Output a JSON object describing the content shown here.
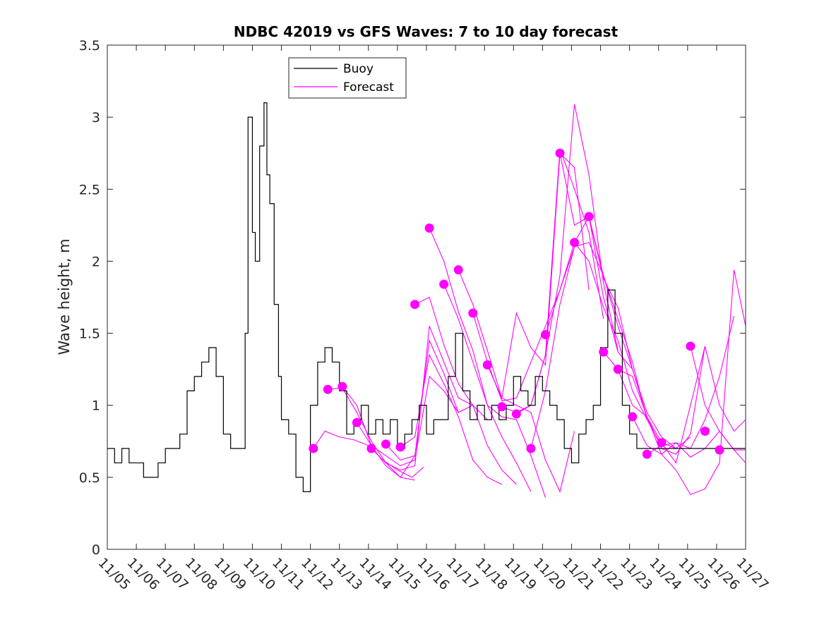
{
  "chart_data": {
    "type": "line",
    "title": "NDBC 42019 vs GFS Waves: 7 to 10 day forecast",
    "xlabel": "",
    "ylabel": "Wave height, m",
    "xlim": [
      0,
      22
    ],
    "ylim": [
      0,
      3.5
    ],
    "yticks": [
      0,
      0.5,
      1,
      1.5,
      2,
      2.5,
      3,
      3.5
    ],
    "ytick_labels": [
      "0",
      "0.5",
      "1",
      "1.5",
      "2",
      "2.5",
      "3",
      "3.5"
    ],
    "xticks": [
      0,
      1,
      2,
      3,
      4,
      5,
      6,
      7,
      8,
      9,
      10,
      11,
      12,
      13,
      14,
      15,
      16,
      17,
      18,
      19,
      20,
      21,
      22
    ],
    "xtick_labels": [
      "11/05",
      "11/06",
      "11/07",
      "11/08",
      "11/09",
      "11/10",
      "11/11",
      "11/12",
      "11/13",
      "11/14",
      "11/15",
      "11/16",
      "11/17",
      "11/18",
      "11/19",
      "11/20",
      "11/21",
      "11/22",
      "11/23",
      "11/24",
      "11/25",
      "11/26",
      "11/27"
    ],
    "legend": {
      "position": "top-left",
      "entries": [
        "Buoy",
        "Forecast"
      ]
    },
    "colors": {
      "buoy": "#000000",
      "forecast": "#ff00ff"
    },
    "buoy": {
      "name": "Buoy",
      "x": [
        0,
        0.25,
        0.5,
        0.75,
        1.0,
        1.25,
        1.5,
        1.75,
        2.0,
        2.25,
        2.5,
        2.75,
        3.0,
        3.25,
        3.5,
        3.75,
        4.0,
        4.25,
        4.5,
        4.75,
        4.85,
        5.0,
        5.1,
        5.25,
        5.4,
        5.5,
        5.6,
        5.75,
        5.9,
        6.0,
        6.25,
        6.5,
        6.75,
        7.0,
        7.25,
        7.5,
        7.75,
        8.0,
        8.25,
        8.5,
        8.75,
        9.0,
        9.25,
        9.5,
        9.75,
        10.0,
        10.25,
        10.5,
        10.75,
        11.0,
        11.25,
        11.5,
        11.75,
        12.0,
        12.25,
        12.5,
        12.75,
        13.0,
        13.25,
        13.5,
        13.75,
        14.0,
        14.25,
        14.5,
        14.75,
        15.0,
        15.25,
        15.5,
        15.75,
        16.0,
        16.25,
        16.5,
        16.75,
        17.0,
        17.25,
        17.5,
        17.75,
        18.0,
        18.25,
        18.5,
        18.75,
        19.0,
        19.25,
        19.5,
        19.75,
        20.0,
        20.25,
        20.5,
        20.75,
        21.0,
        21.25,
        21.5,
        21.75,
        22.0
      ],
      "values": [
        0.7,
        0.6,
        0.7,
        0.6,
        0.6,
        0.5,
        0.5,
        0.6,
        0.7,
        0.7,
        0.8,
        1.1,
        1.2,
        1.3,
        1.4,
        1.2,
        0.8,
        0.7,
        0.7,
        1.5,
        3.0,
        2.2,
        2.0,
        2.8,
        3.1,
        2.6,
        2.4,
        1.7,
        1.2,
        0.9,
        0.8,
        0.5,
        0.4,
        1.0,
        1.3,
        1.4,
        1.3,
        1.1,
        0.8,
        0.9,
        1.0,
        0.8,
        0.9,
        0.8,
        0.9,
        0.7,
        0.8,
        0.9,
        1.0,
        0.8,
        0.9,
        0.9,
        1.2,
        1.5,
        1.1,
        0.9,
        1.0,
        0.9,
        1.0,
        0.9,
        1.0,
        1.2,
        1.1,
        1.0,
        1.2,
        1.1,
        1.0,
        0.9,
        0.7,
        0.6,
        0.8,
        0.9,
        1.0,
        1.4,
        1.8,
        1.5,
        1.0,
        0.8,
        0.7,
        0.7,
        0.7,
        0.7,
        0.7,
        0.7,
        0.7,
        0.7,
        0.7,
        0.7,
        0.7,
        0.7,
        0.7,
        0.7,
        0.7,
        0.7
      ]
    },
    "forecast_series": [
      {
        "name": "Forecast",
        "x": [
          7.1,
          7.5,
          8.0,
          8.5,
          9.0,
          9.5,
          10.0,
          10.5,
          10.9
        ],
        "values": [
          0.7,
          0.82,
          0.78,
          0.76,
          0.72,
          0.62,
          0.55,
          0.5,
          0.57
        ]
      },
      {
        "name": "Forecast",
        "x": [
          7.6,
          8.1,
          8.6,
          9.1,
          9.6,
          10.1,
          10.6
        ],
        "values": [
          1.11,
          1.12,
          0.95,
          0.75,
          0.6,
          0.5,
          0.65
        ]
      },
      {
        "name": "Forecast",
        "x": [
          8.1,
          8.6,
          9.1,
          9.6,
          10.1,
          10.6
        ],
        "values": [
          1.13,
          1.0,
          0.72,
          0.58,
          0.5,
          0.48
        ]
      },
      {
        "name": "Forecast",
        "x": [
          8.6,
          9.1,
          9.6,
          10.1,
          10.6,
          11.1,
          11.6,
          12.1
        ],
        "values": [
          0.88,
          0.72,
          0.65,
          0.58,
          0.62,
          1.2,
          1.1,
          0.95
        ]
      },
      {
        "name": "Forecast",
        "x": [
          9.1,
          9.6,
          10.1,
          10.6,
          11.1,
          11.6,
          12.1,
          12.6
        ],
        "values": [
          0.7,
          0.6,
          0.55,
          0.58,
          1.55,
          1.3,
          1.05,
          1.0
        ]
      },
      {
        "name": "Forecast",
        "x": [
          9.6,
          10.1,
          10.6,
          11.1,
          11.6,
          12.1,
          12.6,
          13.1
        ],
        "values": [
          0.73,
          0.62,
          0.65,
          1.45,
          1.22,
          0.95,
          1.0,
          0.9
        ]
      },
      {
        "name": "Forecast",
        "x": [
          10.1,
          10.6,
          11.1,
          11.6,
          12.1,
          12.6,
          13.1,
          13.6
        ],
        "values": [
          0.71,
          0.78,
          1.35,
          1.15,
          0.92,
          0.62,
          0.5,
          0.45
        ]
      },
      {
        "name": "Forecast",
        "x": [
          10.6,
          11.1,
          11.6,
          12.1,
          12.6,
          13.1,
          13.6,
          14.1
        ],
        "values": [
          1.7,
          1.75,
          1.42,
          1.15,
          1.0,
          0.72,
          0.55,
          0.45
        ]
      },
      {
        "name": "Forecast",
        "x": [
          11.1,
          11.6,
          12.1,
          12.6,
          13.1,
          13.6,
          14.1,
          14.6
        ],
        "values": [
          2.23,
          2.0,
          1.65,
          1.38,
          1.0,
          0.78,
          0.6,
          0.4
        ]
      },
      {
        "name": "Forecast",
        "x": [
          11.6,
          12.1,
          12.6,
          13.1,
          13.6,
          14.1,
          14.6,
          15.1
        ],
        "values": [
          1.84,
          1.6,
          1.3,
          1.0,
          0.92,
          0.9,
          0.65,
          0.36
        ]
      },
      {
        "name": "Forecast",
        "x": [
          12.1,
          12.6,
          13.1,
          13.6,
          14.1,
          14.6,
          15.1,
          15.6,
          16.1
        ],
        "values": [
          1.94,
          1.7,
          1.38,
          1.05,
          1.0,
          0.95,
          0.62,
          0.4,
          0.82
        ]
      },
      {
        "name": "Forecast",
        "x": [
          12.6,
          13.1,
          13.6,
          14.1,
          14.6,
          15.1,
          15.6,
          16.1
        ],
        "values": [
          1.64,
          1.3,
          1.03,
          1.05,
          1.3,
          1.55,
          1.8,
          2.1
        ]
      },
      {
        "name": "Forecast",
        "x": [
          13.1,
          13.6,
          14.1,
          14.6,
          15.1,
          15.6,
          16.1,
          16.6
        ],
        "values": [
          1.28,
          1.05,
          1.64,
          1.4,
          1.28,
          2.75,
          2.65,
          1.8
        ]
      },
      {
        "name": "Forecast",
        "x": [
          13.6,
          14.1,
          14.6,
          15.1,
          15.6,
          16.1,
          16.6,
          17.1
        ],
        "values": [
          0.99,
          0.95,
          1.0,
          1.35,
          2.78,
          2.5,
          2.2,
          1.6
        ]
      },
      {
        "name": "Forecast",
        "x": [
          14.1,
          14.6,
          15.1,
          15.6,
          16.1,
          16.6,
          17.1,
          17.6
        ],
        "values": [
          0.94,
          1.0,
          1.35,
          1.9,
          3.09,
          2.6,
          1.85,
          1.38
        ]
      },
      {
        "name": "Forecast",
        "x": [
          14.6,
          15.1,
          15.6,
          16.1,
          16.6,
          17.1,
          17.6,
          18.1
        ],
        "values": [
          0.7,
          1.1,
          1.7,
          2.1,
          2.13,
          1.9,
          1.55,
          1.25
        ]
      },
      {
        "name": "Forecast",
        "x": [
          15.1,
          15.6,
          16.1,
          16.6,
          17.1,
          17.6,
          18.1,
          18.6
        ],
        "values": [
          1.49,
          1.8,
          2.13,
          2.0,
          1.68,
          1.45,
          1.1,
          0.9
        ]
      },
      {
        "name": "Forecast",
        "x": [
          15.6,
          16.1,
          16.6,
          17.1,
          17.6,
          18.1,
          18.6,
          19.1
        ],
        "values": [
          2.75,
          2.25,
          2.31,
          1.9,
          1.6,
          1.3,
          0.9,
          0.72
        ]
      },
      {
        "name": "Forecast",
        "x": [
          16.1,
          16.6,
          17.1,
          17.6,
          18.1,
          18.6,
          19.1,
          19.6
        ],
        "values": [
          2.13,
          2.31,
          1.88,
          1.68,
          1.25,
          0.95,
          0.78,
          0.7
        ]
      },
      {
        "name": "Forecast",
        "x": [
          16.6,
          17.1,
          17.6,
          18.1,
          18.6,
          19.1,
          19.6,
          20.1
        ],
        "values": [
          2.31,
          1.75,
          1.37,
          1.25,
          0.92,
          0.74,
          0.7,
          0.78
        ]
      },
      {
        "name": "Forecast",
        "x": [
          17.1,
          17.6,
          18.1,
          18.6,
          19.1,
          19.6,
          20.1,
          20.6
        ],
        "values": [
          1.37,
          1.25,
          1.2,
          0.92,
          0.7,
          0.66,
          0.8,
          1.41
        ]
      },
      {
        "name": "Forecast",
        "x": [
          17.6,
          18.1,
          18.6,
          19.1,
          19.6,
          20.1,
          20.6,
          21.1,
          21.6
        ],
        "values": [
          1.25,
          1.0,
          0.92,
          0.66,
          0.74,
          0.7,
          0.9,
          1.2,
          1.62
        ]
      },
      {
        "name": "Forecast",
        "x": [
          18.1,
          18.6,
          19.1,
          19.6,
          20.1,
          20.6,
          21.1,
          21.6,
          22.0
        ],
        "values": [
          0.92,
          0.72,
          0.66,
          0.55,
          0.38,
          0.42,
          0.6,
          1.94,
          1.55
        ]
      },
      {
        "name": "Forecast",
        "x": [
          18.6,
          19.1,
          19.6,
          20.1,
          20.6,
          21.1,
          21.6,
          22.0
        ],
        "values": [
          0.66,
          0.72,
          0.74,
          0.64,
          0.7,
          0.82,
          0.69,
          0.6
        ]
      },
      {
        "name": "Forecast",
        "x": [
          19.1,
          19.6,
          20.1,
          20.6,
          21.1,
          21.6,
          22.0
        ],
        "values": [
          0.74,
          0.6,
          1.0,
          1.41,
          1.0,
          0.82,
          0.9
        ]
      },
      {
        "name": "Forecast",
        "x": [
          20.1,
          20.6,
          21.1,
          21.6,
          22.0
        ],
        "values": [
          1.41,
          1.0,
          0.82,
          0.69,
          0.69
        ]
      }
    ],
    "forecast_markers": {
      "x": [
        7.1,
        7.6,
        8.1,
        8.6,
        9.1,
        9.6,
        10.1,
        10.6,
        11.1,
        11.6,
        12.1,
        12.6,
        13.1,
        13.6,
        14.1,
        14.6,
        15.1,
        15.6,
        16.1,
        16.6,
        17.1,
        17.6,
        18.1,
        18.6,
        19.1,
        20.1,
        20.6,
        21.1
      ],
      "values": [
        0.7,
        1.11,
        1.13,
        0.88,
        0.7,
        0.73,
        0.71,
        1.7,
        2.23,
        1.84,
        1.94,
        1.64,
        1.28,
        0.99,
        0.94,
        0.7,
        1.49,
        2.75,
        2.13,
        2.31,
        1.37,
        1.25,
        0.92,
        0.66,
        0.74,
        1.41,
        0.82,
        0.69
      ]
    }
  }
}
